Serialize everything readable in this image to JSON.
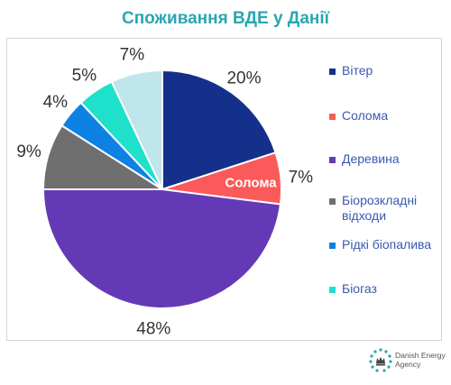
{
  "chart_data": {
    "type": "pie",
    "title": "Споживання ВДЕ у Данії",
    "slices": [
      {
        "label": "Вітер",
        "value": 20,
        "display": "20%",
        "color": "#15308a"
      },
      {
        "label": "Солома",
        "value": 7,
        "display": "7%",
        "color": "#fb5a5a"
      },
      {
        "label": "Деревина",
        "value": 48,
        "display": "48%",
        "color": "#6439b6"
      },
      {
        "label": "Біорозкладні відходи",
        "value": 9,
        "display": "9%",
        "color": "#6f6f6f"
      },
      {
        "label": "Рідкі біопалива",
        "value": 4,
        "display": "4%",
        "color": "#0d82e3"
      },
      {
        "label": "Біогаз",
        "value": 5,
        "display": "5%",
        "color": "#1fe0cb"
      },
      {
        "label": "",
        "value": 7,
        "display": "7%",
        "color": "#bfe6ea"
      }
    ],
    "inner_label": "Солома",
    "legend_position": "right"
  },
  "logo": {
    "name": "danish-energy-agency-logo",
    "line1": "Danish Energy",
    "line2": "Agency"
  }
}
